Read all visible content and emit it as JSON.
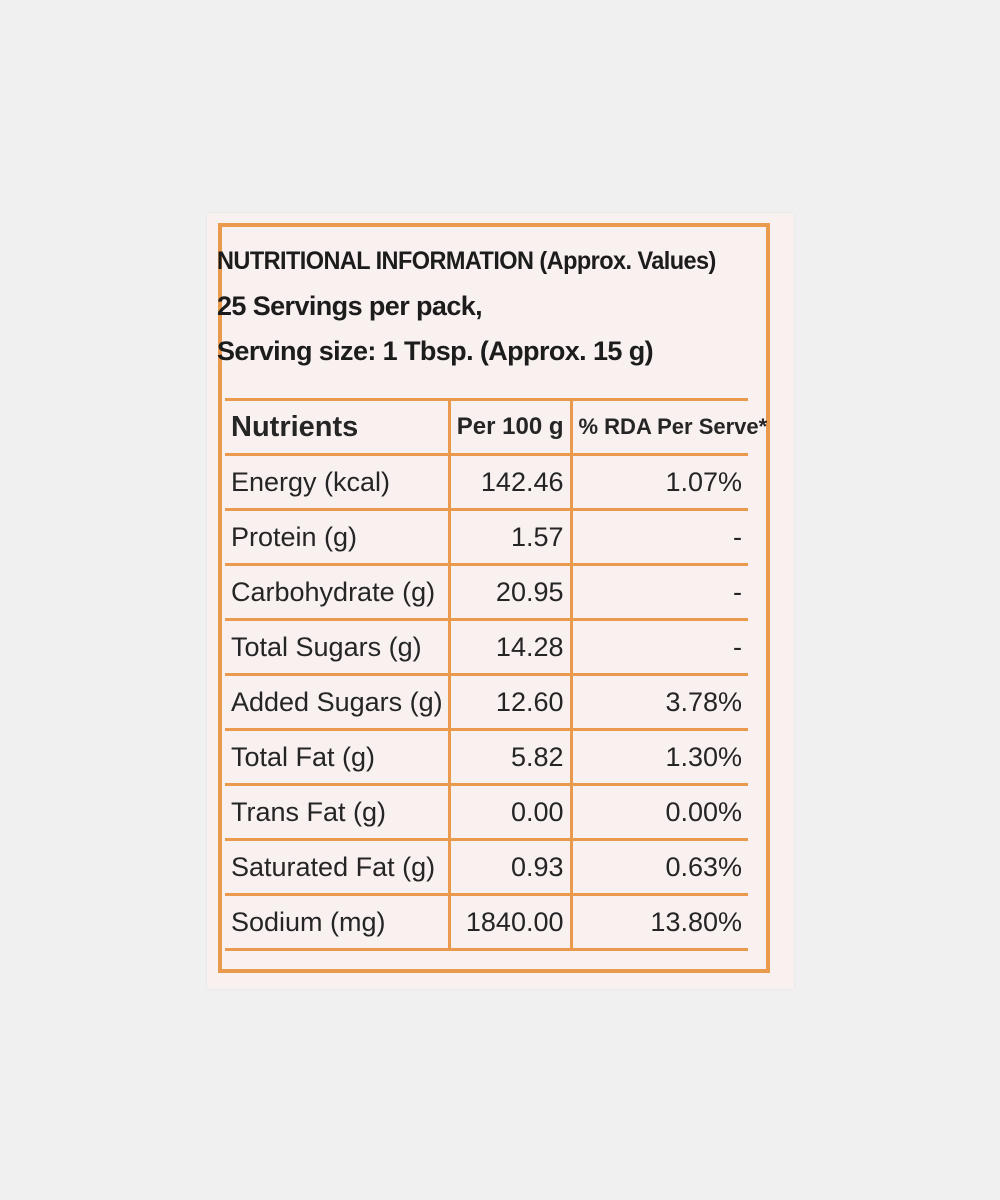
{
  "header": {
    "title": "NUTRITIONAL INFORMATION (Approx. Values)",
    "servings": "25 Servings per pack,",
    "serving_size": "Serving size: 1 Tbsp. (Approx. 15 g)"
  },
  "table": {
    "headers": [
      "Nutrients",
      "Per 100 g",
      "% RDA Per Serve*"
    ],
    "rows": [
      {
        "nutrient": "Energy (kcal)",
        "per100": "142.46",
        "rda": "1.07%"
      },
      {
        "nutrient": "Protein (g)",
        "per100": "1.57",
        "rda": "-"
      },
      {
        "nutrient": "Carbohydrate (g)",
        "per100": "20.95",
        "rda": "-"
      },
      {
        "nutrient": "Total Sugars (g)",
        "per100": "14.28",
        "rda": "-"
      },
      {
        "nutrient": "Added Sugars (g)",
        "per100": "12.60",
        "rda": "3.78%"
      },
      {
        "nutrient": "Total Fat (g)",
        "per100": "5.82",
        "rda": "1.30%"
      },
      {
        "nutrient": "Trans Fat (g)",
        "per100": "0.00",
        "rda": "0.00%"
      },
      {
        "nutrient": "Saturated Fat (g)",
        "per100": "0.93",
        "rda": "0.63%"
      },
      {
        "nutrient": "Sodium (mg)",
        "per100": "1840.00",
        "rda": "13.80%"
      }
    ]
  },
  "colors": {
    "border": "#ea9a4c",
    "text": "#252525",
    "label_bg": "#f8f1f0",
    "page_bg": "#f0f0f0"
  }
}
